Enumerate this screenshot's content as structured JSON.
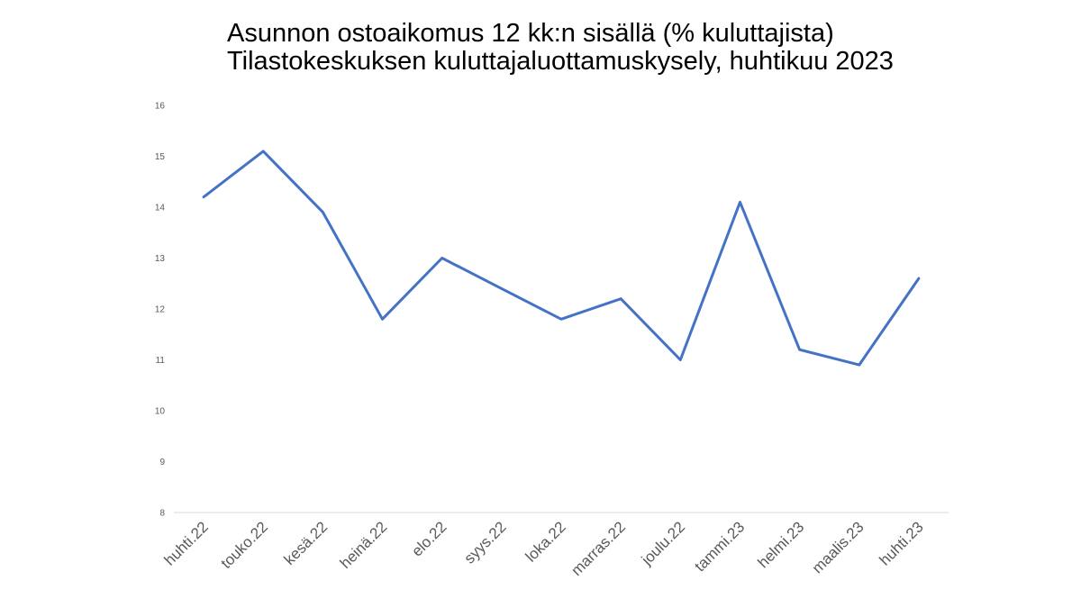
{
  "chart_data": {
    "type": "line",
    "title": "Asunnon ostoaikomus 12 kk:n sisällä (% kuluttajista)",
    "subtitle": "Tilastokeskuksen kuluttajaluottamuskysely, huhtikuu 2023",
    "categories": [
      "huhti.22",
      "touko.22",
      "kesä.22",
      "heinä.22",
      "elo.22",
      "syys.22",
      "loka.22",
      "marras.22",
      "joulu.22",
      "tammi.23",
      "helmi.23",
      "maalis.23",
      "huhti.23"
    ],
    "series": [
      {
        "values": [
          14.2,
          15.1,
          13.9,
          11.8,
          13.0,
          12.4,
          11.8,
          12.2,
          11.0,
          14.1,
          11.2,
          10.9,
          12.6
        ]
      }
    ],
    "ylim": [
      8,
      16
    ],
    "yticks": [
      "8",
      "9",
      "10",
      "11",
      "12",
      "13",
      "14",
      "15",
      "16"
    ],
    "grid": false,
    "line_color": "#4472c4",
    "axis_color": "#d9d9d9"
  }
}
